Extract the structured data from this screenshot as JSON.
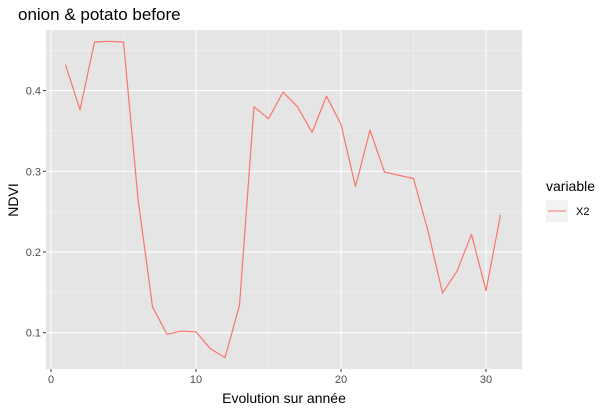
{
  "chart_data": {
    "type": "line",
    "title": "onion & potato before",
    "xlabel": "Evolution sur année",
    "ylabel": "NDVI",
    "xlim": [
      0,
      31
    ],
    "ylim": [
      0.055,
      0.475
    ],
    "x_ticks": [
      0,
      10,
      20,
      30
    ],
    "x_tick_labels": [
      "0",
      "10",
      "20",
      "30"
    ],
    "y_ticks": [
      0.1,
      0.2,
      0.3,
      0.4
    ],
    "y_tick_labels": [
      "0.1",
      "0.2",
      "0.3",
      "0.4"
    ],
    "grid": true,
    "legend": {
      "title": "variable",
      "position": "right",
      "entries": [
        "X2"
      ]
    },
    "series": [
      {
        "name": "X2",
        "color": "#F8766D",
        "x": [
          1,
          2,
          3,
          4,
          5,
          6,
          7,
          8,
          9,
          10,
          11,
          12,
          13,
          14,
          15,
          16,
          17,
          18,
          19,
          20,
          21,
          22,
          23,
          24,
          25,
          26,
          27,
          28,
          29,
          30,
          31
        ],
        "y": [
          0.432,
          0.376,
          0.46,
          0.461,
          0.46,
          0.266,
          0.132,
          0.098,
          0.102,
          0.101,
          0.08,
          0.069,
          0.134,
          0.38,
          0.365,
          0.398,
          0.38,
          0.348,
          0.393,
          0.358,
          0.281,
          0.351,
          0.299,
          0.295,
          0.291,
          0.226,
          0.149,
          0.176,
          0.222,
          0.152,
          0.246
        ]
      }
    ]
  }
}
